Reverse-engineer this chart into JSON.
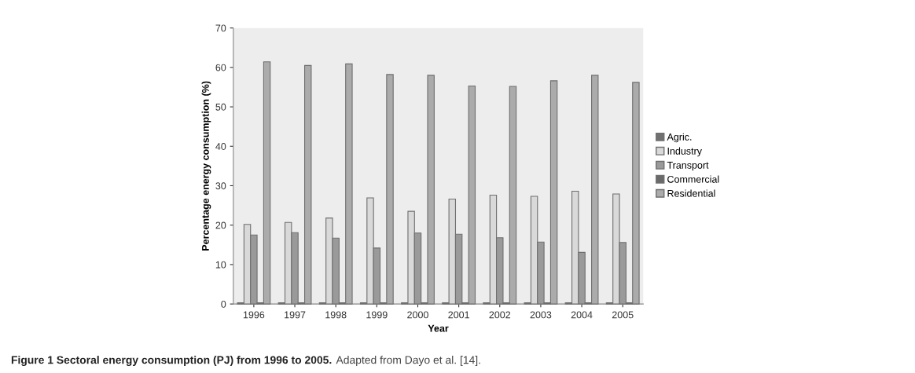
{
  "chart_data": {
    "type": "bar",
    "xlabel": "Year",
    "ylabel": "Percentage energy consumption (%)",
    "categories": [
      "1996",
      "1997",
      "1998",
      "1999",
      "2000",
      "2001",
      "2002",
      "2003",
      "2004",
      "2005"
    ],
    "series": [
      {
        "name": "Agric.",
        "color": "#707070",
        "values": [
          0.3,
          0.3,
          0.3,
          0.3,
          0.3,
          0.3,
          0.3,
          0.3,
          0.3,
          0.3
        ]
      },
      {
        "name": "Industry",
        "color": "#d9d9d9",
        "values": [
          20.2,
          20.7,
          21.8,
          26.9,
          23.5,
          26.6,
          27.6,
          27.3,
          28.6,
          27.9
        ]
      },
      {
        "name": "Transport",
        "color": "#9a9a9a",
        "values": [
          17.5,
          18.1,
          16.7,
          14.2,
          18.0,
          17.7,
          16.8,
          15.7,
          13.1,
          15.6
        ]
      },
      {
        "name": "Commercial",
        "color": "#6a6a6a",
        "values": [
          0.3,
          0.3,
          0.3,
          0.3,
          0.3,
          0.3,
          0.3,
          0.3,
          0.3,
          0.3
        ]
      },
      {
        "name": "Residential",
        "color": "#ababab",
        "values": [
          61.4,
          60.5,
          60.9,
          58.2,
          58.0,
          55.3,
          55.2,
          56.6,
          58.0,
          56.2
        ]
      }
    ],
    "ylim": [
      0,
      70
    ],
    "yticks": [
      0,
      10,
      20,
      30,
      40,
      50,
      60,
      70
    ],
    "grid": false,
    "legend": "right",
    "annotations": [
      "Figure 1 Sectoral energy consumption (PJ) from 1996 to 2005.",
      "Adapted from Dayo et al. [14]."
    ]
  }
}
